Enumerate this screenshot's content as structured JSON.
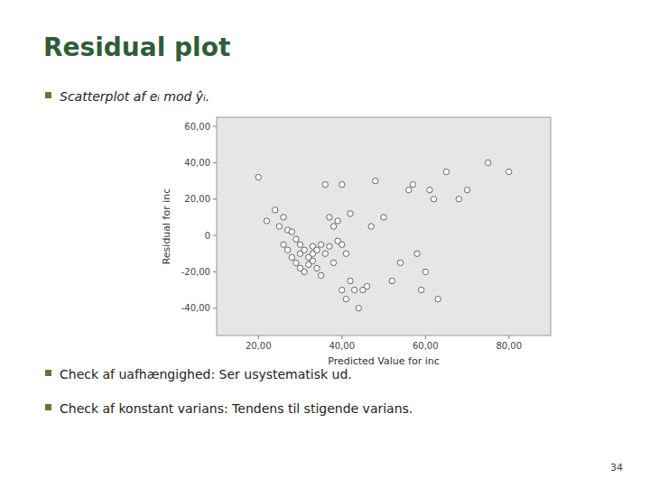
{
  "chart_data": {
    "type": "scatter",
    "title": "Residual plot",
    "annotations": [
      "Scatterplot af eᵢ mod ŷᵢ.",
      "Check af uafhængighed:   Ser usystematisk ud.",
      "Check af konstant varians: Tendens til stigende varians."
    ],
    "footer": "34",
    "x_label": "Predicted Value for inc",
    "y_label": "Residual for inc",
    "color": "white",
    "grid": false,
    "xlim": [
      10,
      90
    ],
    "ylim": [
      -55000,
      65000
    ],
    "xticks": [
      {
        "value": 20,
        "label": "20,00"
      },
      {
        "value": 40,
        "label": "40,00"
      },
      {
        "value": 60,
        "label": "60,00"
      },
      {
        "value": 80,
        "label": "80,00"
      }
    ],
    "yticks": [
      {
        "value": -40000,
        "label": "-40,00"
      },
      {
        "value": -20000,
        "label": "-20,00"
      },
      0,
      {
        "value": 20000,
        "label": "20,00"
      },
      {
        "value": 40000,
        "label": "40,00"
      },
      {
        "value": 60000,
        "label": "60,00"
      }
    ],
    "x": [
      20,
      22,
      24,
      25,
      26,
      26,
      27,
      27,
      28,
      28,
      29,
      29,
      30,
      30,
      30,
      31,
      31,
      32,
      32,
      33,
      33,
      33,
      34,
      34,
      35,
      35,
      36,
      36,
      37,
      37,
      38,
      38,
      39,
      39,
      40,
      40,
      40,
      41,
      41,
      42,
      42,
      43,
      44,
      45,
      46,
      47,
      48,
      50,
      52,
      54,
      56,
      57,
      58,
      59,
      60,
      61,
      62,
      63,
      65,
      68,
      70,
      75,
      80
    ],
    "values": [
      32000,
      8000,
      14000,
      5000,
      10000,
      -5000,
      3000,
      -8000,
      2000,
      -12000,
      -2000,
      -15000,
      -10000,
      -18000,
      -5000,
      -20000,
      -8000,
      -12000,
      -16000,
      -6000,
      -10000,
      -14000,
      -8000,
      -18000,
      -5000,
      -22000,
      28000,
      -10000,
      10000,
      -6000,
      5000,
      -15000,
      8000,
      -3000,
      28000,
      -5000,
      -30000,
      -10000,
      -35000,
      12000,
      -25000,
      -30000,
      -40000,
      -30000,
      -28000,
      5000,
      30000,
      10000,
      -25000,
      -15000,
      25000,
      28000,
      -10000,
      -30000,
      -20000,
      25000,
      20000,
      -35000,
      35000,
      20000,
      25000,
      40000,
      35000
    ]
  }
}
